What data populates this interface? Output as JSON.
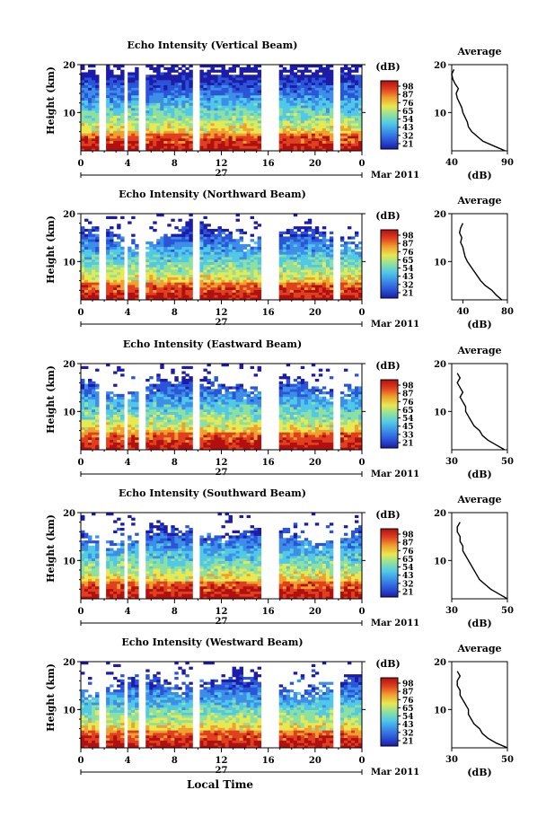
{
  "figure": {
    "xlabel": "Local Time",
    "date_label": "Mar 2011",
    "day_label": "27",
    "colorbar_unit": "(dB)",
    "avg_title": "Average",
    "avg_xlabel": "(dB)"
  },
  "chart_data": [
    {
      "type": "heatmap",
      "title": "Echo Intensity (Vertical Beam)",
      "ylabel": "Height (km)",
      "xlim": [
        0,
        24
      ],
      "ylim": [
        2,
        20
      ],
      "xticks": [
        "0",
        "4",
        "8",
        "12",
        "16",
        "20",
        "0"
      ],
      "yticks": [
        "10",
        "20"
      ],
      "colorbar_ticks": [
        "21",
        "32",
        "43",
        "54",
        "65",
        "76",
        "87",
        "98"
      ],
      "avg_xticks": [
        "40",
        "90"
      ],
      "avg_xlim": [
        40,
        90
      ],
      "avg_profile": {
        "height_km": [
          2,
          3,
          4,
          5,
          6,
          7,
          8,
          9,
          10,
          11,
          12,
          13,
          14,
          15,
          16,
          17,
          18,
          19
        ],
        "db": [
          88,
          78,
          68,
          63,
          58,
          55,
          54,
          52,
          50,
          49,
          47,
          45,
          44,
          46,
          43,
          41,
          40,
          42
        ]
      },
      "gaps_hours": [
        [
          1.5,
          2.2
        ],
        [
          3.6,
          4.1
        ],
        [
          4.8,
          5.4
        ],
        [
          9.6,
          10.2
        ],
        [
          15.5,
          16.9
        ],
        [
          21.6,
          22.2
        ]
      ]
    },
    {
      "type": "heatmap",
      "title": "Echo Intensity (Northward Beam)",
      "ylabel": "Height (km)",
      "xlim": [
        0,
        24
      ],
      "ylim": [
        2,
        20
      ],
      "xticks": [
        "0",
        "4",
        "8",
        "12",
        "16",
        "20",
        "0"
      ],
      "yticks": [
        "10",
        "20"
      ],
      "colorbar_ticks": [
        "21",
        "32",
        "43",
        "54",
        "65",
        "76",
        "87",
        "98"
      ],
      "avg_xticks": [
        "40",
        "80"
      ],
      "avg_xlim": [
        30,
        80
      ],
      "avg_profile": {
        "height_km": [
          2,
          3,
          4,
          5,
          6,
          7,
          8,
          9,
          10,
          11,
          12,
          13,
          14,
          15,
          16,
          17,
          18
        ],
        "db": [
          75,
          70,
          66,
          60,
          56,
          53,
          50,
          47,
          44,
          42,
          41,
          40,
          38,
          39,
          37,
          38,
          40
        ]
      },
      "gaps_hours": [
        [
          1.5,
          2.2
        ],
        [
          3.6,
          4.1
        ],
        [
          4.8,
          5.4
        ],
        [
          9.6,
          10.2
        ],
        [
          15.5,
          16.9
        ],
        [
          21.6,
          22.2
        ]
      ]
    },
    {
      "type": "heatmap",
      "title": "Echo Intensity (Eastward Beam)",
      "ylabel": "Height (km)",
      "xlim": [
        0,
        24
      ],
      "ylim": [
        2,
        20
      ],
      "xticks": [
        "0",
        "4",
        "8",
        "12",
        "16",
        "20",
        "0"
      ],
      "yticks": [
        "10",
        "20"
      ],
      "colorbar_ticks": [
        "21",
        "33",
        "45",
        "54",
        "65",
        "76",
        "87",
        "98"
      ],
      "avg_xticks": [
        "30",
        "50"
      ],
      "avg_xlim": [
        30,
        50
      ],
      "avg_profile": {
        "height_km": [
          2,
          3,
          4,
          5,
          6,
          7,
          8,
          9,
          10,
          11,
          12,
          13,
          14,
          15,
          16,
          17,
          18
        ],
        "db": [
          49,
          46,
          43,
          41,
          40,
          38,
          37,
          36,
          35,
          35,
          34,
          33,
          34,
          33,
          32,
          33,
          32
        ]
      },
      "gaps_hours": [
        [
          1.5,
          2.2
        ],
        [
          3.6,
          4.1
        ],
        [
          4.8,
          5.4
        ],
        [
          9.6,
          10.2
        ],
        [
          15.5,
          16.9
        ],
        [
          21.6,
          22.2
        ]
      ]
    },
    {
      "type": "heatmap",
      "title": "Echo Intensity (Southward Beam)",
      "ylabel": "Height (km)",
      "xlim": [
        0,
        24
      ],
      "ylim": [
        2,
        20
      ],
      "xticks": [
        "0",
        "4",
        "8",
        "12",
        "16",
        "20",
        "0"
      ],
      "yticks": [
        "10",
        "20"
      ],
      "colorbar_ticks": [
        "21",
        "32",
        "43",
        "54",
        "65",
        "76",
        "87",
        "98"
      ],
      "avg_xticks": [
        "30",
        "50"
      ],
      "avg_xlim": [
        30,
        50
      ],
      "avg_profile": {
        "height_km": [
          2,
          3,
          4,
          5,
          6,
          7,
          8,
          9,
          10,
          11,
          12,
          13,
          14,
          15,
          16,
          17,
          18
        ],
        "db": [
          50,
          47,
          44,
          42,
          40,
          39,
          38,
          37,
          36,
          35,
          34,
          34,
          33,
          33,
          32,
          32,
          33
        ]
      },
      "gaps_hours": [
        [
          1.5,
          2.2
        ],
        [
          3.6,
          4.1
        ],
        [
          4.8,
          5.4
        ],
        [
          9.6,
          10.2
        ],
        [
          15.5,
          16.9
        ],
        [
          21.6,
          22.2
        ]
      ]
    },
    {
      "type": "heatmap",
      "title": "Echo Intensity (Westward Beam)",
      "ylabel": "Height (km)",
      "xlim": [
        0,
        24
      ],
      "ylim": [
        2,
        20
      ],
      "xticks": [
        "0",
        "4",
        "8",
        "12",
        "16",
        "20",
        "0"
      ],
      "yticks": [
        "10",
        "20"
      ],
      "colorbar_ticks": [
        "21",
        "32",
        "43",
        "54",
        "65",
        "76",
        "87",
        "98"
      ],
      "avg_xticks": [
        "30",
        "50"
      ],
      "avg_xlim": [
        30,
        50
      ],
      "avg_profile": {
        "height_km": [
          2,
          3,
          4,
          5,
          6,
          7,
          8,
          9,
          10,
          11,
          12,
          13,
          14,
          15,
          16,
          17,
          18
        ],
        "db": [
          50,
          46,
          43,
          41,
          40,
          38,
          37,
          36,
          36,
          35,
          34,
          33,
          33,
          32,
          32,
          33,
          32
        ]
      },
      "gaps_hours": [
        [
          1.5,
          2.2
        ],
        [
          3.6,
          4.1
        ],
        [
          4.8,
          5.4
        ],
        [
          9.6,
          10.2
        ],
        [
          15.5,
          16.9
        ],
        [
          21.6,
          22.2
        ]
      ]
    }
  ],
  "colors": {
    "colormap": [
      "#1c1ca8",
      "#2b55d8",
      "#3c8ee8",
      "#50c8e8",
      "#8ee0a0",
      "#e8e850",
      "#f0a030",
      "#e04020",
      "#b01010"
    ]
  }
}
